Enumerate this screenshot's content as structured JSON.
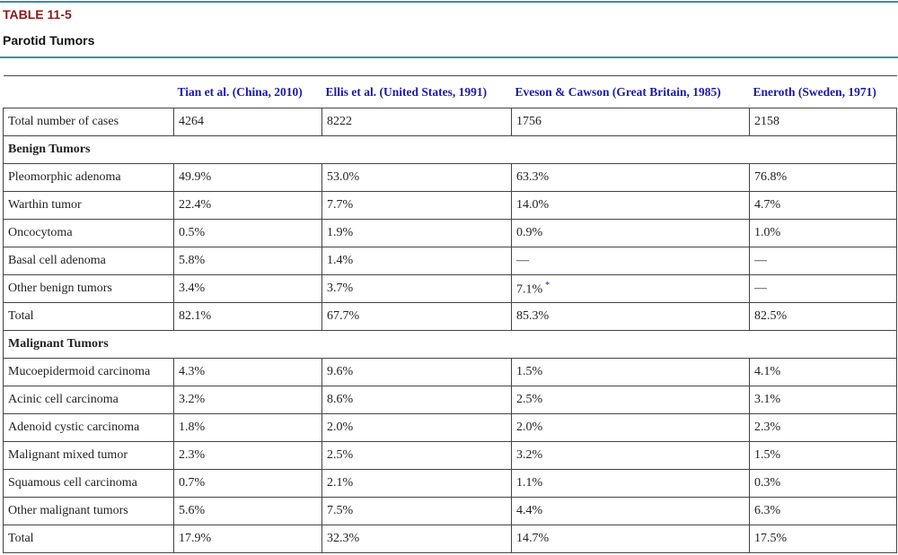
{
  "header": {
    "label": "TABLE 11-5",
    "title": "Parotid Tumors"
  },
  "table": {
    "headers": [
      "",
      "Tian et al. (China, 2010)",
      "Ellis et al. (United States, 1991)",
      "Eveson & Cawson (Great Britain, 1985)",
      "Eneroth (Sweden, 1971)"
    ],
    "rows": [
      {
        "label": "Total number of cases",
        "cells": [
          "4264",
          "8222",
          "1756",
          "2158"
        ]
      },
      {
        "section": "Benign Tumors"
      },
      {
        "label": "Pleomorphic adenoma",
        "cells": [
          "49.9%",
          "53.0%",
          "63.3%",
          "76.8%"
        ]
      },
      {
        "label": "Warthin tumor",
        "cells": [
          "22.4%",
          "7.7%",
          "14.0%",
          "4.7%"
        ]
      },
      {
        "label": "Oncocytoma",
        "cells": [
          "0.5%",
          "1.9%",
          "0.9%",
          "1.0%"
        ]
      },
      {
        "label": "Basal cell adenoma",
        "cells": [
          "5.8%",
          "1.4%",
          "—",
          "—"
        ]
      },
      {
        "label": "Other benign tumors",
        "cells": [
          "3.4%",
          "3.7%",
          {
            "text": "7.1%",
            "mark": "*"
          },
          "—"
        ]
      },
      {
        "label": "Total",
        "cells": [
          "82.1%",
          "67.7%",
          "85.3%",
          "82.5%"
        ]
      },
      {
        "section": "Malignant Tumors"
      },
      {
        "label": "Mucoepidermoid carcinoma",
        "cells": [
          "4.3%",
          "9.6%",
          "1.5%",
          "4.1%"
        ]
      },
      {
        "label": "Acinic cell carcinoma",
        "cells": [
          "3.2%",
          "8.6%",
          "2.5%",
          "3.1%"
        ]
      },
      {
        "label": "Adenoid cystic carcinoma",
        "cells": [
          "1.8%",
          "2.0%",
          "2.0%",
          "2.3%"
        ]
      },
      {
        "label": "Malignant mixed tumor",
        "cells": [
          "2.3%",
          "2.5%",
          "3.2%",
          "1.5%"
        ]
      },
      {
        "label": "Squamous cell carcinoma",
        "cells": [
          "0.7%",
          "2.1%",
          "1.1%",
          "0.3%"
        ]
      },
      {
        "label": "Other malignant tumors",
        "cells": [
          "5.6%",
          "7.5%",
          "4.4%",
          "6.3%"
        ]
      },
      {
        "label": "Total",
        "cells": [
          "17.9%",
          "32.3%",
          "14.7%",
          "17.5%"
        ]
      }
    ]
  }
}
